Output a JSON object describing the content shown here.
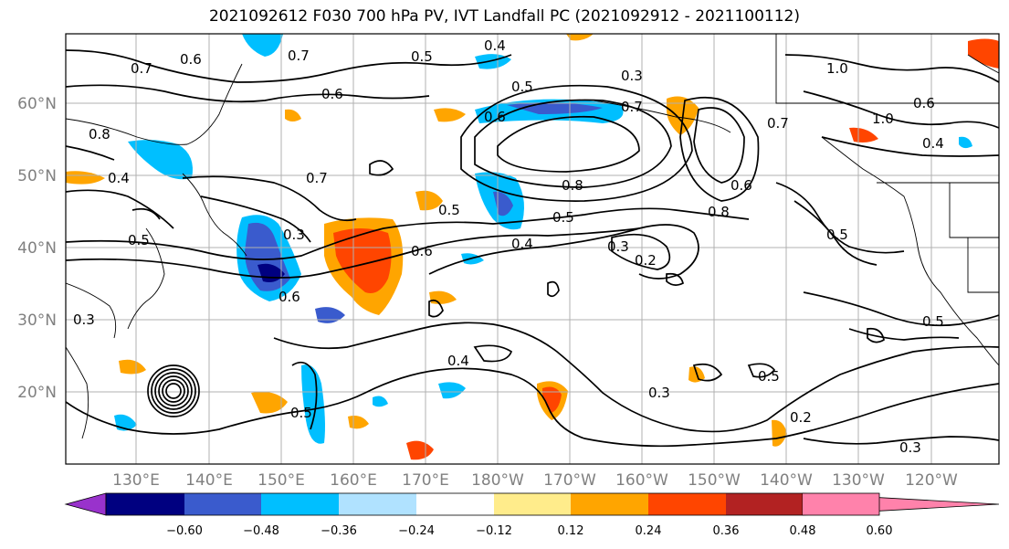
{
  "title": "2021092612 F030 700 hPa PV, IVT Landfall PC (2021092912 - 2021100112)",
  "lon_ticks": [
    "130°E",
    "140°E",
    "150°E",
    "160°E",
    "170°E",
    "180°W",
    "170°W",
    "160°W",
    "150°W",
    "140°W",
    "130°W",
    "120°W"
  ],
  "lat_ticks": [
    "60°N",
    "50°N",
    "40°N",
    "30°N",
    "20°N"
  ],
  "colorbar": {
    "levels": [
      "−0.60",
      "−0.48",
      "−0.36",
      "−0.24",
      "−0.12",
      "0.12",
      "0.24",
      "0.36",
      "0.48",
      "0.60"
    ],
    "colors": [
      "#9932cc",
      "#000080",
      "#3a5bcd",
      "#00bfff",
      "#b0e2ff",
      "#ffffff",
      "#ffec8b",
      "#ffa500",
      "#ff4500",
      "#b22222",
      "#ff82ab"
    ]
  },
  "contour_labels": [
    "0.7",
    "0.6",
    "0.7",
    "0.5",
    "0.4",
    "0.3",
    "0.6",
    "0.5",
    "0.6",
    "0.7",
    "0.8",
    "0.6",
    "0.8",
    "0.5",
    "0.6",
    "0.4",
    "0.3",
    "0.2",
    "0.5",
    "0.4",
    "0.3",
    "0.2",
    "0.5",
    "0.6",
    "0.3",
    "0.5",
    "0.4",
    "0.3",
    "0.8",
    "0.7",
    "1.0",
    "1.0",
    "0.4",
    "0.5",
    "0.3",
    "0.6",
    "0.5",
    "0.5",
    "0.7"
  ]
}
